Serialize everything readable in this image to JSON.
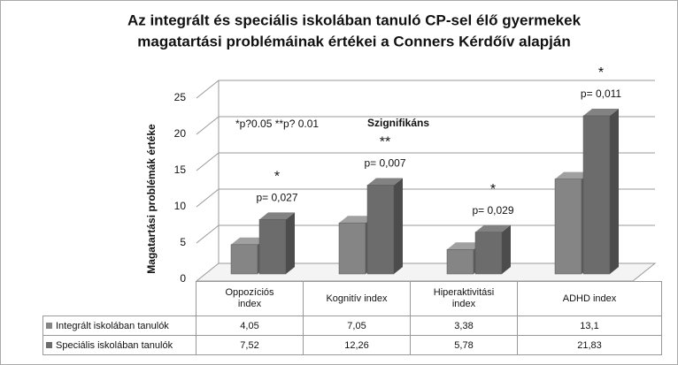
{
  "chart_data": {
    "type": "bar3d",
    "title": [
      "Az integrált és speciális iskolában tanuló CP-sel élő gyermekek",
      "magatartási problémáinak értékei a Conners Kérdőív alapján"
    ],
    "y_label": "Magatartási problémák értéke",
    "note": "*p?0.05  **p? 0.01",
    "significance_title": "Szignifikáns",
    "categories": [
      "Oppozíciós index",
      "Kognitív index",
      "Hiperaktivitási index",
      "ADHD index"
    ],
    "series": [
      {
        "name": "Integrált iskolában tanulók",
        "color": "#858585",
        "values": [
          4.05,
          7.05,
          3.38,
          13.1
        ],
        "value_labels": [
          "4,05",
          "7,05",
          "3,38",
          "13,1"
        ]
      },
      {
        "name": "Speciális iskolában tanulók",
        "color": "#6c6c6c",
        "values": [
          7.52,
          12.26,
          5.78,
          21.83
        ],
        "value_labels": [
          "7,52",
          "12,26",
          "5,78",
          "21,83"
        ]
      }
    ],
    "significance": [
      {
        "mark": "*",
        "label": "p= 0,027"
      },
      {
        "mark": "**",
        "label": "p= 0,007"
      },
      {
        "mark": "*",
        "label": "p= 0,029"
      },
      {
        "mark": "*",
        "label": "p= 0,011"
      }
    ],
    "ylim": [
      0,
      25
    ],
    "yticks": [
      0,
      5,
      10,
      15,
      20,
      25
    ],
    "grid": true
  }
}
